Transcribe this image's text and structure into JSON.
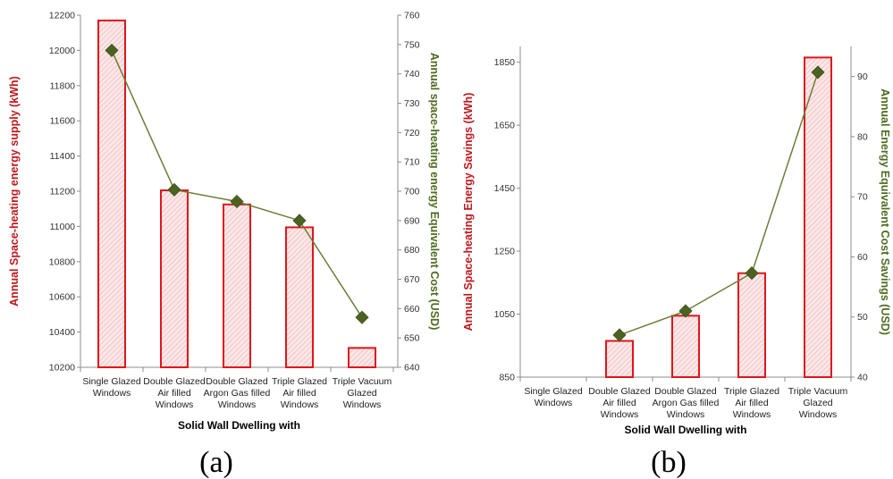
{
  "colors": {
    "bar_stroke": "#e0161b",
    "bar_fill": "#fbe7e7",
    "hatch": "#f0a6a6",
    "left_axis_label": "#c0191e",
    "right_axis_label": "#4e6b1f",
    "line": "#6b7d3a",
    "marker": "#4b6222",
    "axis": "#8c8c8c"
  },
  "chart_data": [
    {
      "type": "bar",
      "panel_label": "(a)",
      "title": "",
      "categories": [
        [
          "Single Glazed",
          "Windows"
        ],
        [
          "Double Glazed",
          "Air filled",
          "Windows"
        ],
        [
          "Double Glazed",
          "Argon Gas filled",
          "Windows"
        ],
        [
          "Triple Glazed",
          "Air filled",
          "Windows"
        ],
        [
          "Triple Vacuum",
          "Glazed",
          "Windows"
        ]
      ],
      "xlabel": "Solid Wall Dwelling with",
      "ylabel": "Annual Space-heating energy supply (kWh)",
      "y2label": "Annual space-heating energy Equivalent Cost  (USD)",
      "ylim": [
        10200,
        12200
      ],
      "yticks": [
        10200,
        10400,
        10600,
        10800,
        11000,
        11200,
        11400,
        11600,
        11800,
        12000,
        12200
      ],
      "y2lim": [
        640,
        760
      ],
      "y2ticks": [
        640,
        650,
        660,
        670,
        680,
        690,
        700,
        710,
        720,
        730,
        740,
        750,
        760
      ],
      "series": [
        {
          "kind": "bar",
          "axis": "left",
          "values": [
            12170,
            11205,
            11125,
            10995,
            10310
          ]
        },
        {
          "kind": "line",
          "axis": "right",
          "marker": "diamond",
          "values": [
            748,
            700.5,
            696.5,
            690,
            657
          ]
        }
      ],
      "legend": "none",
      "grid": false
    },
    {
      "type": "bar",
      "panel_label": "(b)",
      "title": "",
      "categories": [
        [
          "Single Glazed",
          "Windows"
        ],
        [
          "Double Glazed",
          "Air filled",
          "Windows"
        ],
        [
          "Double Glazed",
          "Argon Gas filled",
          "Windows"
        ],
        [
          "Triple Glazed",
          "Air filled",
          "Windows"
        ],
        [
          "Triple Vacuum",
          "Glazed",
          "Windows"
        ]
      ],
      "xlabel": "Solid Wall Dwelling with",
      "ylabel": "Annual Space-heating Energy Savings (kWh)",
      "y2label": "Annual Energy Equivalent Cost  Savings (USD)",
      "ylim": [
        850,
        1900
      ],
      "yticks": [
        850,
        1050,
        1250,
        1450,
        1650,
        1850
      ],
      "y2lim": [
        40,
        95
      ],
      "y2ticks": [
        40,
        50,
        60,
        70,
        80,
        90
      ],
      "series": [
        {
          "kind": "bar",
          "axis": "left",
          "values": [
            null,
            965,
            1045,
            1180,
            1865
          ]
        },
        {
          "kind": "line",
          "axis": "right",
          "marker": "diamond",
          "values": [
            null,
            47,
            51,
            57.3,
            90.7
          ]
        }
      ],
      "legend": "none",
      "grid": false
    }
  ]
}
